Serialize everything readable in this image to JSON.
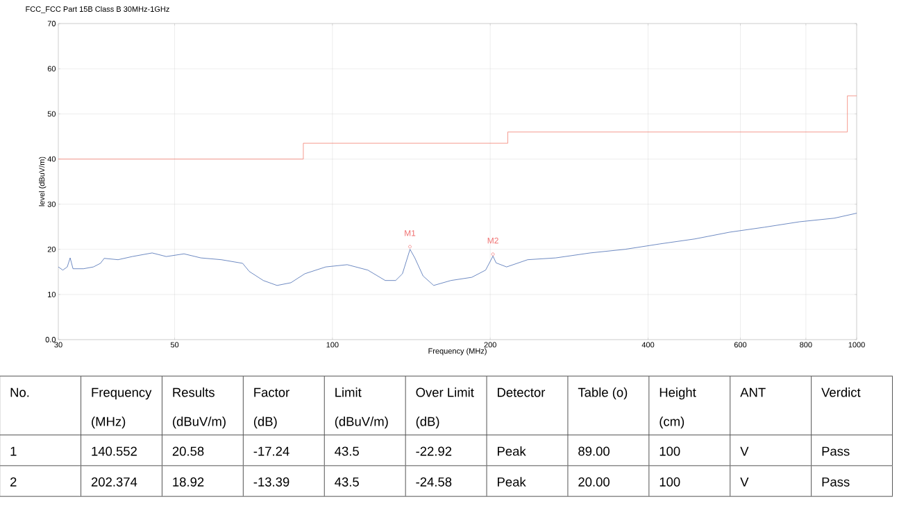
{
  "chart_data": [
    {
      "type": "line",
      "title": "FCC_FCC Part 15B  Class B 30MHz-1GHz",
      "xlabel": "Frequency (MHz)",
      "ylabel": "level (dBuV/m)",
      "log": "x",
      "grid": true,
      "xlim": [
        30,
        1000
      ],
      "xticks": [
        30,
        50,
        100,
        200,
        400,
        600,
        800,
        1000
      ],
      "ylim": [
        0,
        70
      ],
      "yticks": [
        {
          "value": 0,
          "label": "0.0"
        },
        10,
        20,
        30,
        40,
        50,
        60,
        70
      ],
      "series": [
        {
          "color": "#2f58a8",
          "x": [
            30,
            30.6,
            31.2,
            31.6,
            32.0,
            33.5,
            35.0,
            36.1,
            36.7,
            39.0,
            41.5,
            45.3,
            48.2,
            52.1,
            56.1,
            61.4,
            67.4,
            69.4,
            73.8,
            78.4,
            83.3,
            88.6,
            97.1,
            106.7,
            116.8,
            126.1,
            132.0,
            136.0,
            140.6,
            143.6,
            148.9,
            156.0,
            168.3,
            184.4,
            196.0,
            202.4,
            205.2,
            214.9,
            235.7,
            266.6,
            310.2,
            361.5,
            421.4,
            491.2,
            572.5,
            667.3,
            778,
            906.8,
            1000
          ],
          "values": [
            16.1,
            15.4,
            16.1,
            18.1,
            15.7,
            15.7,
            16.1,
            16.9,
            18.0,
            17.7,
            18.4,
            19.2,
            18.4,
            19.0,
            18.1,
            17.7,
            16.9,
            15.1,
            13.1,
            12.0,
            12.6,
            14.6,
            16.1,
            16.6,
            15.4,
            13.1,
            13.1,
            14.6,
            20.0,
            18.1,
            14.1,
            12.0,
            13.1,
            13.8,
            15.4,
            18.5,
            17.0,
            16.1,
            17.7,
            18.1,
            19.2,
            20.0,
            21.2,
            22.3,
            23.8,
            24.9,
            26.1,
            26.9,
            28.0
          ]
        },
        {
          "type": "step",
          "color": "#f07060",
          "x": [
            30,
            88,
            216,
            960,
            1000
          ],
          "values": [
            40,
            43.5,
            46,
            54,
            54
          ]
        },
        {
          "type": "scatter",
          "color": "#f07070",
          "marker": "circle",
          "x": [
            140.552,
            202.374
          ],
          "values": [
            20.58,
            18.92
          ]
        }
      ],
      "annotations": [
        {
          "text": "M1",
          "x": 140.552,
          "y": 20.58
        },
        {
          "text": "M2",
          "x": 202.374,
          "y": 18.92
        }
      ]
    },
    {
      "type": "other",
      "categories": [
        "No.",
        "Frequency (MHz)",
        "Results (dBuV/m)",
        "Factor (dB)",
        "Limit (dBuV/m)",
        "Over Limit (dB)",
        "Detector",
        "Table (o)",
        "Height (cm)",
        "ANT",
        "Verdict"
      ],
      "annotations": [
        "1",
        "140.552",
        "20.58",
        "-17.24",
        "43.5",
        "-22.92",
        "Peak",
        "89.00",
        "100",
        "V",
        "Pass",
        "2",
        "202.374",
        "18.92",
        "-13.39",
        "43.5",
        "-24.58",
        "Peak",
        "20.00",
        "100",
        "V",
        "Pass"
      ]
    }
  ]
}
